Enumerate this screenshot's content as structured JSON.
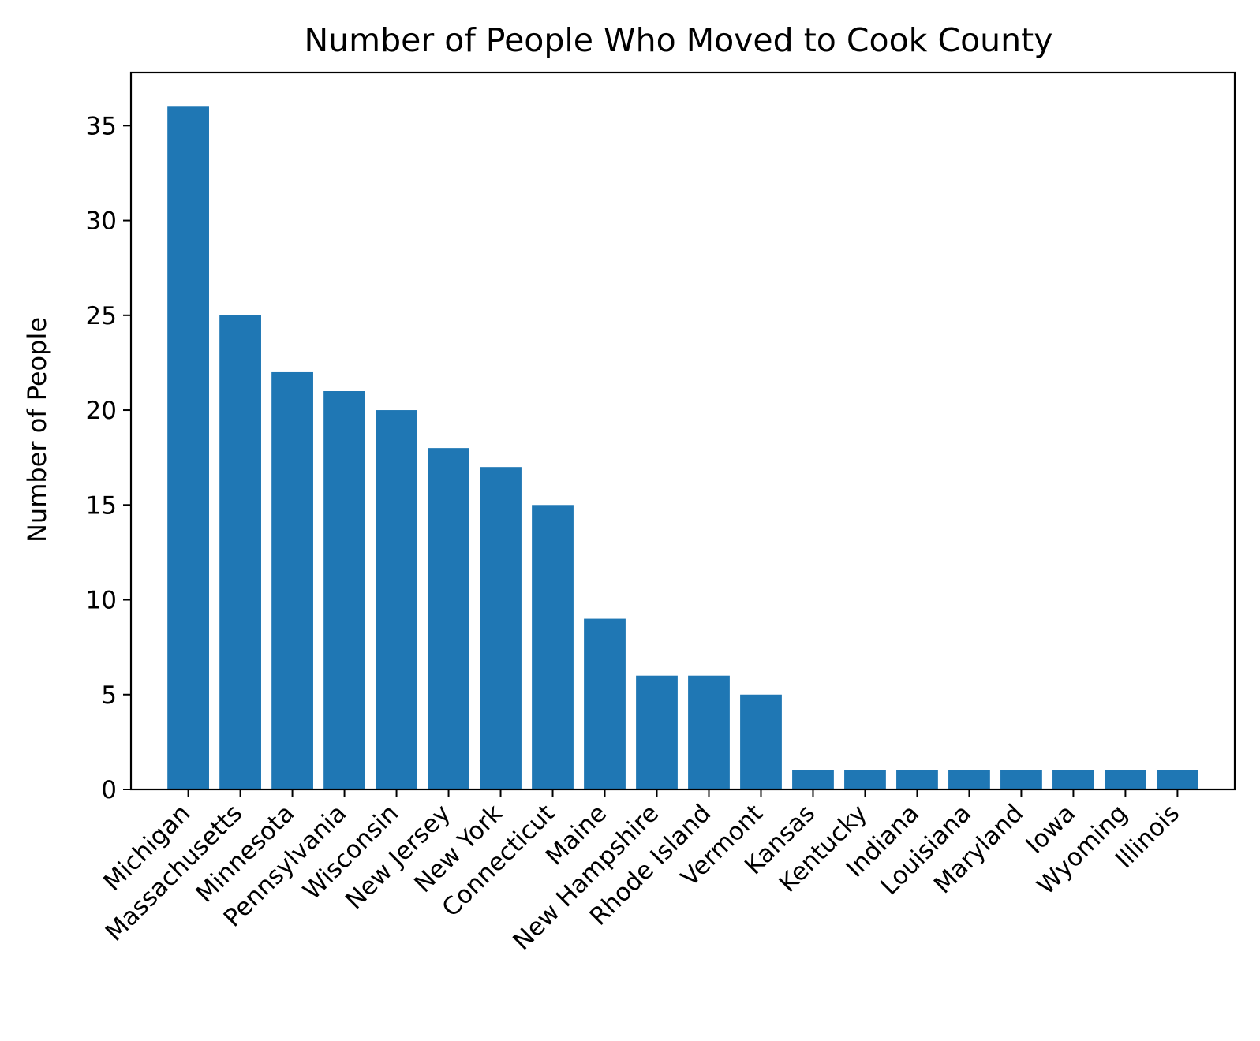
{
  "chart_data": {
    "type": "bar",
    "title": "Number of People Who Moved to Cook County",
    "xlabel": "",
    "ylabel": "Number of People",
    "categories": [
      "Michigan",
      "Massachusetts",
      "Minnesota",
      "Pennsylvania",
      "Wisconsin",
      "New Jersey",
      "New York",
      "Connecticut",
      "Maine",
      "New Hampshire",
      "Rhode Island",
      "Vermont",
      "Kansas",
      "Kentucky",
      "Indiana",
      "Louisiana",
      "Maryland",
      "Iowa",
      "Wyoming",
      "Illinois"
    ],
    "values": [
      36,
      25,
      22,
      21,
      20,
      18,
      17,
      15,
      9,
      6,
      6,
      5,
      1,
      1,
      1,
      1,
      1,
      1,
      1,
      1
    ],
    "ylim": [
      0,
      37.8
    ],
    "yticks": [
      0,
      5,
      10,
      15,
      20,
      25,
      30,
      35
    ],
    "grid": false,
    "legend": "none",
    "bar_color": "#1f77b4"
  }
}
